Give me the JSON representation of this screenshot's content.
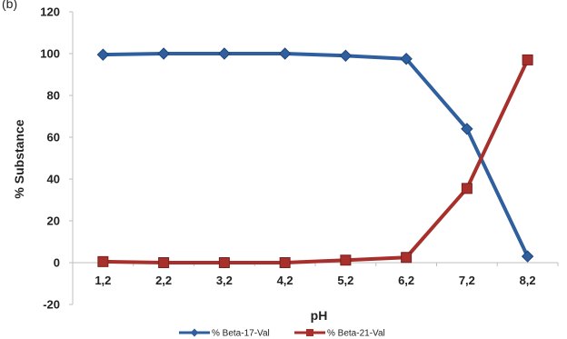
{
  "panel_label": "(b)",
  "chart_data": {
    "type": "line",
    "title": "",
    "xlabel": "pH",
    "ylabel": "% Substance",
    "categories": [
      "1,2",
      "2,2",
      "3,2",
      "4,2",
      "5,2",
      "6,2",
      "7,2",
      "8,2"
    ],
    "ylim": [
      -20,
      120
    ],
    "yticks": [
      -20,
      0,
      20,
      40,
      60,
      80,
      100,
      120
    ],
    "grid": false,
    "legend_position": "bottom",
    "series": [
      {
        "name": "% Beta-17-Val",
        "marker": "diamond",
        "color": "#2f5f9e",
        "values": [
          99.5,
          100,
          100,
          100,
          99,
          97.5,
          64,
          3
        ]
      },
      {
        "name": "% Beta-21-Val",
        "marker": "square",
        "color": "#a8302c",
        "values": [
          0.5,
          0,
          0,
          0,
          1.2,
          2.5,
          35.5,
          97
        ]
      }
    ]
  }
}
